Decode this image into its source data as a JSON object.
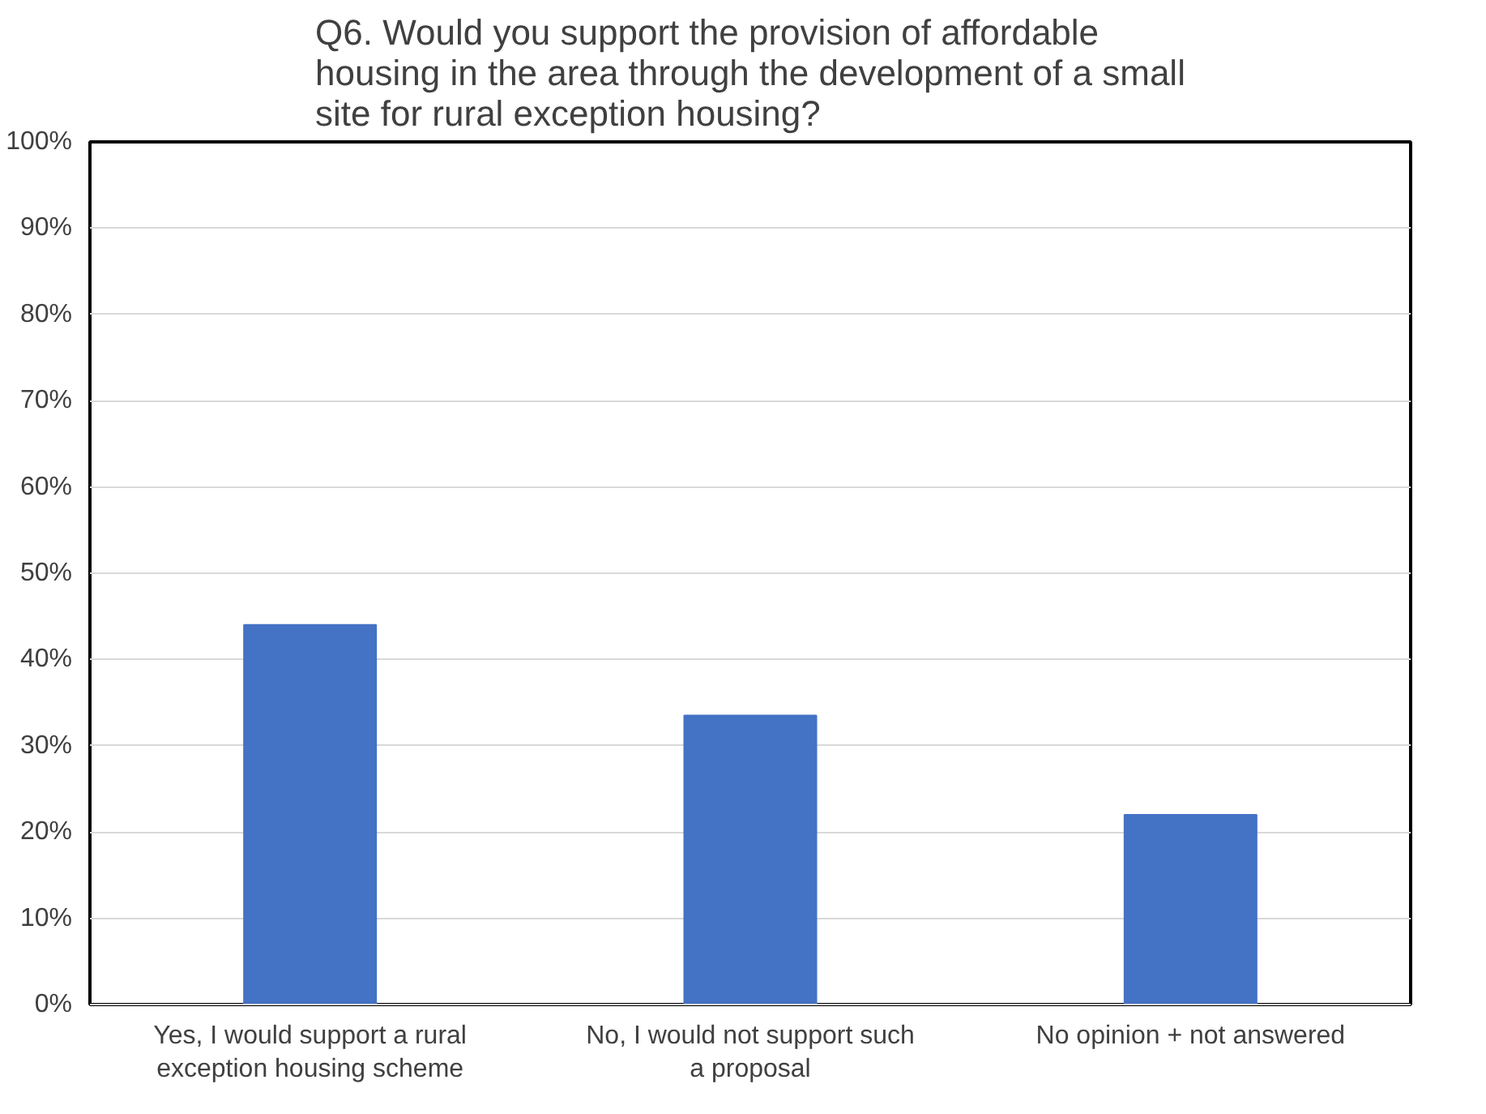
{
  "chart_data": {
    "type": "bar",
    "title": "Q6. Would you support the provision of affordable housing in the area through the development of a small site for rural exception housing?",
    "categories": [
      "Yes, I would support a rural exception housing scheme",
      "No, I would not support such a proposal",
      "No opinion + not answered"
    ],
    "values": [
      44,
      33.5,
      22
    ],
    "color": "#4472c4",
    "ylim": [
      0,
      100
    ],
    "yticks": [
      {
        "value": 0,
        "label": "0%"
      },
      {
        "value": 10,
        "label": "10%"
      },
      {
        "value": 20,
        "label": "20%"
      },
      {
        "value": 30,
        "label": "30%"
      },
      {
        "value": 40,
        "label": "40%"
      },
      {
        "value": 50,
        "label": "50%"
      },
      {
        "value": 60,
        "label": "60%"
      },
      {
        "value": 70,
        "label": "70%"
      },
      {
        "value": 80,
        "label": "80%"
      },
      {
        "value": 90,
        "label": "90%"
      },
      {
        "value": 100,
        "label": "100%"
      }
    ],
    "grid": "y",
    "legend": false
  }
}
